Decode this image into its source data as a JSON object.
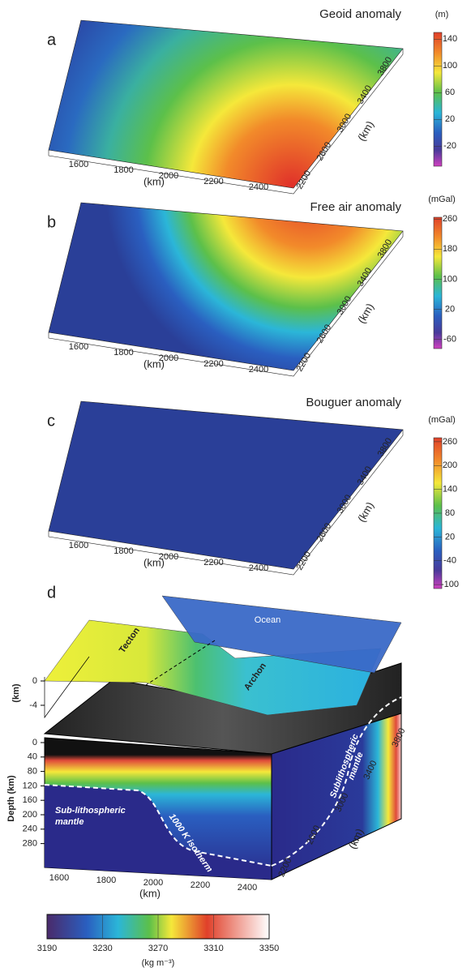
{
  "panels": [
    {
      "label": "a",
      "title": "Geoid anomaly",
      "unit": "(m)",
      "colorbar_ticks": [
        140,
        100,
        60,
        20,
        -20
      ],
      "colorbar_lim": [
        -50,
        150
      ],
      "x_ticks": [
        1600,
        1800,
        2000,
        2200,
        2400
      ],
      "x_label": "(km)",
      "y_ticks": [
        2200,
        2600,
        3000,
        3400,
        3800
      ],
      "y_label": "(km)"
    },
    {
      "label": "b",
      "title": "Free air anomaly",
      "unit": "(mGal)",
      "colorbar_ticks": [
        260,
        180,
        100,
        20,
        -60
      ],
      "colorbar_lim": [
        -85,
        265
      ],
      "x_ticks": [
        1600,
        1800,
        2000,
        2200,
        2400
      ],
      "x_label": "(km)",
      "y_ticks": [
        2200,
        2600,
        3000,
        3400,
        3800
      ],
      "y_label": "(km)"
    },
    {
      "label": "c",
      "title": "Bouguer anomaly",
      "unit": "(mGal)",
      "colorbar_ticks": [
        260,
        200,
        140,
        80,
        20,
        -40,
        -100
      ],
      "colorbar_lim": [
        -110,
        270
      ],
      "x_ticks": [
        1600,
        1800,
        2000,
        2200,
        2400
      ],
      "x_label": "(km)",
      "y_ticks": [
        2200,
        2600,
        3000,
        3400,
        3800
      ],
      "y_label": "(km)"
    }
  ],
  "panel_d": {
    "label": "d",
    "tecton": "Tecton",
    "ocean": "Ocean",
    "archon": "Archon",
    "top_axis_label": "(km)",
    "top_axis_ticks": [
      0,
      -4
    ],
    "depth_label": "Depth (km)",
    "depth_ticks": [
      0,
      40,
      80,
      120,
      160,
      200,
      240,
      280
    ],
    "left_mantle": [
      "Sub-lithospheric",
      "mantle"
    ],
    "isotherm": "1000 K isotherm",
    "right_mantle": [
      "Sublithospheric",
      "mantle"
    ],
    "x_ticks": [
      1600,
      1800,
      2000,
      2200,
      2400
    ],
    "x_label": "(km)",
    "y_ticks": [
      2200,
      2600,
      3000,
      3400,
      3800
    ],
    "y_label": "(km)",
    "colorbar_ticks": [
      3190,
      3230,
      3270,
      3310,
      3350
    ],
    "colorbar_lim": [
      3190,
      3350
    ],
    "colorbar_unit": "(kg m⁻³)"
  }
}
